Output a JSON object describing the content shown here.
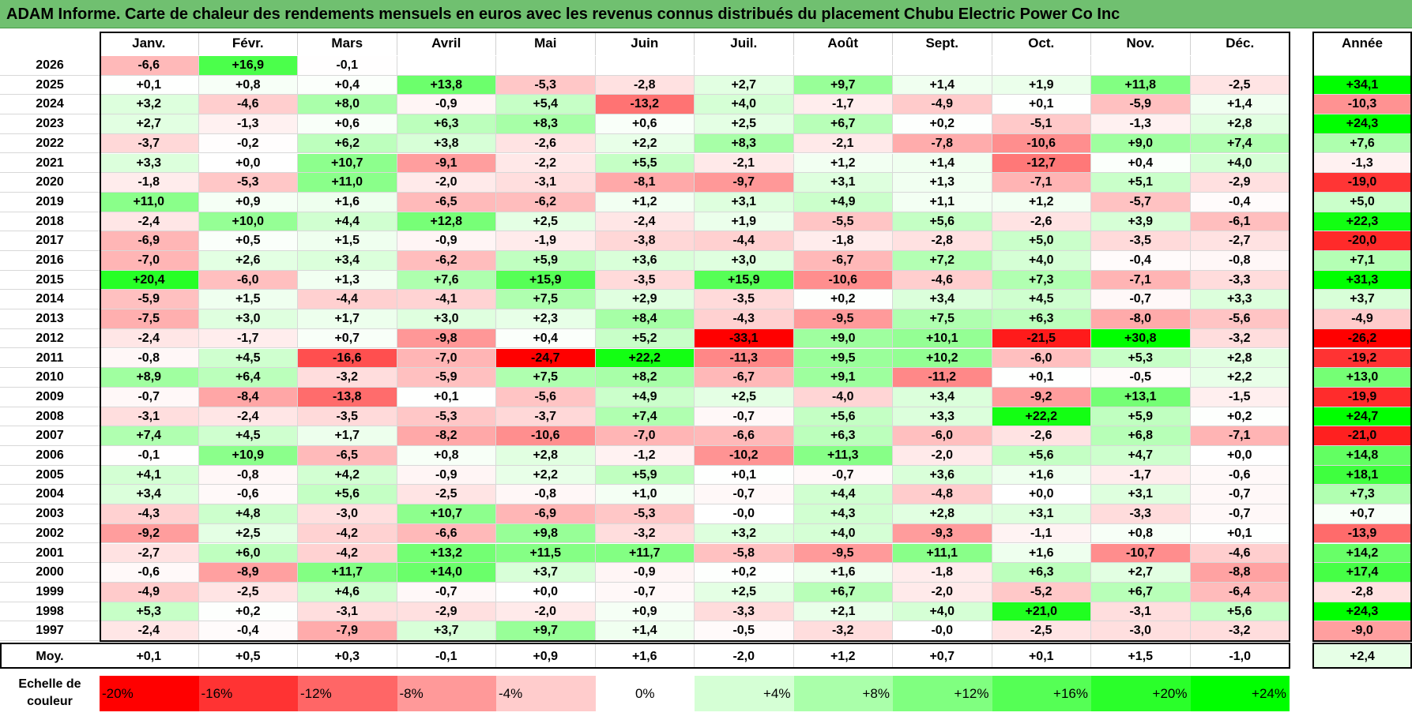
{
  "title": "ADAM Informe. Carte de chaleur des rendements mensuels en euros avec les revenus connus distribués du placement Chubu Electric Power Co Inc",
  "chart_data": {
    "type": "heatmap",
    "title": "ADAM Informe. Carte de chaleur des rendements mensuels en euros avec les revenus connus distribués du placement Chubu Electric Power Co Inc",
    "columns": [
      "Janv.",
      "Févr.",
      "Mars",
      "Avril",
      "Mai",
      "Juin",
      "Juil.",
      "Août",
      "Sept.",
      "Oct.",
      "Nov.",
      "Déc."
    ],
    "annual_header": "Année",
    "rows": [
      {
        "year": "2026",
        "values": [
          "-6,6",
          "+16,9",
          "-0,1",
          "",
          "",
          "",
          "",
          "",
          "",
          "",
          "",
          ""
        ],
        "annual": ""
      },
      {
        "year": "2025",
        "values": [
          "+0,1",
          "+0,8",
          "+0,4",
          "+13,8",
          "-5,3",
          "-2,8",
          "+2,7",
          "+9,7",
          "+1,4",
          "+1,9",
          "+11,8",
          "-2,5"
        ],
        "annual": "+34,1"
      },
      {
        "year": "2024",
        "values": [
          "+3,2",
          "-4,6",
          "+8,0",
          "-0,9",
          "+5,4",
          "-13,2",
          "+4,0",
          "-1,7",
          "-4,9",
          "+0,1",
          "-5,9",
          "+1,4"
        ],
        "annual": "-10,3"
      },
      {
        "year": "2023",
        "values": [
          "+2,7",
          "-1,3",
          "+0,6",
          "+6,3",
          "+8,3",
          "+0,6",
          "+2,5",
          "+6,7",
          "+0,2",
          "-5,1",
          "-1,3",
          "+2,8"
        ],
        "annual": "+24,3"
      },
      {
        "year": "2022",
        "values": [
          "-3,7",
          "-0,2",
          "+6,2",
          "+3,8",
          "-2,6",
          "+2,2",
          "+8,3",
          "-2,1",
          "-7,8",
          "-10,6",
          "+9,0",
          "+7,4"
        ],
        "annual": "+7,6"
      },
      {
        "year": "2021",
        "values": [
          "+3,3",
          "+0,0",
          "+10,7",
          "-9,1",
          "-2,2",
          "+5,5",
          "-2,1",
          "+1,2",
          "+1,4",
          "-12,7",
          "+0,4",
          "+4,0"
        ],
        "annual": "-1,3"
      },
      {
        "year": "2020",
        "values": [
          "-1,8",
          "-5,3",
          "+11,0",
          "-2,0",
          "-3,1",
          "-8,1",
          "-9,7",
          "+3,1",
          "+1,3",
          "-7,1",
          "+5,1",
          "-2,9"
        ],
        "annual": "-19,0"
      },
      {
        "year": "2019",
        "values": [
          "+11,0",
          "+0,9",
          "+1,6",
          "-6,5",
          "-6,2",
          "+1,2",
          "+3,1",
          "+4,9",
          "+1,1",
          "+1,2",
          "-5,7",
          "-0,4"
        ],
        "annual": "+5,0"
      },
      {
        "year": "2018",
        "values": [
          "-2,4",
          "+10,0",
          "+4,4",
          "+12,8",
          "+2,5",
          "-2,4",
          "+1,9",
          "-5,5",
          "+5,6",
          "-2,6",
          "+3,9",
          "-6,1"
        ],
        "annual": "+22,3"
      },
      {
        "year": "2017",
        "values": [
          "-6,9",
          "+0,5",
          "+1,5",
          "-0,9",
          "-1,9",
          "-3,8",
          "-4,4",
          "-1,8",
          "-2,8",
          "+5,0",
          "-3,5",
          "-2,7"
        ],
        "annual": "-20,0"
      },
      {
        "year": "2016",
        "values": [
          "-7,0",
          "+2,6",
          "+3,4",
          "-6,2",
          "+5,9",
          "+3,6",
          "+3,0",
          "-6,7",
          "+7,2",
          "+4,0",
          "-0,4",
          "-0,8"
        ],
        "annual": "+7,1"
      },
      {
        "year": "2015",
        "values": [
          "+20,4",
          "-6,0",
          "+1,3",
          "+7,6",
          "+15,9",
          "-3,5",
          "+15,9",
          "-10,6",
          "-4,6",
          "+7,3",
          "-7,1",
          "-3,3"
        ],
        "annual": "+31,3"
      },
      {
        "year": "2014",
        "values": [
          "-5,9",
          "+1,5",
          "-4,4",
          "-4,1",
          "+7,5",
          "+2,9",
          "-3,5",
          "+0,2",
          "+3,4",
          "+4,5",
          "-0,7",
          "+3,3"
        ],
        "annual": "+3,7"
      },
      {
        "year": "2013",
        "values": [
          "-7,5",
          "+3,0",
          "+1,7",
          "+3,0",
          "+2,3",
          "+8,4",
          "-4,3",
          "-9,5",
          "+7,5",
          "+6,3",
          "-8,0",
          "-5,6"
        ],
        "annual": "-4,9"
      },
      {
        "year": "2012",
        "values": [
          "-2,4",
          "-1,7",
          "+0,7",
          "-9,8",
          "+0,4",
          "+5,2",
          "-33,1",
          "+9,0",
          "+10,1",
          "-21,5",
          "+30,8",
          "-3,2"
        ],
        "annual": "-26,2"
      },
      {
        "year": "2011",
        "values": [
          "-0,8",
          "+4,5",
          "-16,6",
          "-7,0",
          "-24,7",
          "+22,2",
          "-11,3",
          "+9,5",
          "+10,2",
          "-6,0",
          "+5,3",
          "+2,8"
        ],
        "annual": "-19,2"
      },
      {
        "year": "2010",
        "values": [
          "+8,9",
          "+6,4",
          "-3,2",
          "-5,9",
          "+7,5",
          "+8,2",
          "-6,7",
          "+9,1",
          "-11,2",
          "+0,1",
          "-0,5",
          "+2,2"
        ],
        "annual": "+13,0"
      },
      {
        "year": "2009",
        "values": [
          "-0,7",
          "-8,4",
          "-13,8",
          "+0,1",
          "-5,6",
          "+4,9",
          "+2,5",
          "-4,0",
          "+3,4",
          "-9,2",
          "+13,1",
          "-1,5"
        ],
        "annual": "-19,9"
      },
      {
        "year": "2008",
        "values": [
          "-3,1",
          "-2,4",
          "-3,5",
          "-5,3",
          "-3,7",
          "+7,4",
          "-0,7",
          "+5,6",
          "+3,3",
          "+22,2",
          "+5,9",
          "+0,2"
        ],
        "annual": "+24,7"
      },
      {
        "year": "2007",
        "values": [
          "+7,4",
          "+4,5",
          "+1,7",
          "-8,2",
          "-10,6",
          "-7,0",
          "-6,6",
          "+6,3",
          "-6,0",
          "-2,6",
          "+6,8",
          "-7,1"
        ],
        "annual": "-21,0"
      },
      {
        "year": "2006",
        "values": [
          "-0,1",
          "+10,9",
          "-6,5",
          "+0,8",
          "+2,8",
          "-1,2",
          "-10,2",
          "+11,3",
          "-2,0",
          "+5,6",
          "+4,7",
          "+0,0"
        ],
        "annual": "+14,8"
      },
      {
        "year": "2005",
        "values": [
          "+4,1",
          "-0,8",
          "+4,2",
          "-0,9",
          "+2,2",
          "+5,9",
          "+0,1",
          "-0,7",
          "+3,6",
          "+1,6",
          "-1,7",
          "-0,6"
        ],
        "annual": "+18,1"
      },
      {
        "year": "2004",
        "values": [
          "+3,4",
          "-0,6",
          "+5,6",
          "-2,5",
          "-0,8",
          "+1,0",
          "-0,7",
          "+4,4",
          "-4,8",
          "+0,0",
          "+3,1",
          "-0,7"
        ],
        "annual": "+7,3"
      },
      {
        "year": "2003",
        "values": [
          "-4,3",
          "+4,8",
          "-3,0",
          "+10,7",
          "-6,9",
          "-5,3",
          "-0,0",
          "+4,3",
          "+2,8",
          "+3,1",
          "-3,3",
          "-0,7"
        ],
        "annual": "+0,7"
      },
      {
        "year": "2002",
        "values": [
          "-9,2",
          "+2,5",
          "-4,2",
          "-6,6",
          "+9,8",
          "-3,2",
          "+3,2",
          "+4,0",
          "-9,3",
          "-1,1",
          "+0,8",
          "+0,1"
        ],
        "annual": "-13,9"
      },
      {
        "year": "2001",
        "values": [
          "-2,7",
          "+6,0",
          "-4,2",
          "+13,2",
          "+11,5",
          "+11,7",
          "-5,8",
          "-9,5",
          "+11,1",
          "+1,6",
          "-10,7",
          "-4,6"
        ],
        "annual": "+14,2"
      },
      {
        "year": "2000",
        "values": [
          "-0,6",
          "-8,9",
          "+11,7",
          "+14,0",
          "+3,7",
          "-0,9",
          "+0,2",
          "+1,6",
          "-1,8",
          "+6,3",
          "+2,7",
          "-8,8"
        ],
        "annual": "+17,4"
      },
      {
        "year": "1999",
        "values": [
          "-4,9",
          "-2,5",
          "+4,6",
          "-0,7",
          "+0,0",
          "-0,7",
          "+2,5",
          "+6,7",
          "-2,0",
          "-5,2",
          "+6,7",
          "-6,4"
        ],
        "annual": "-2,8"
      },
      {
        "year": "1998",
        "values": [
          "+5,3",
          "+0,2",
          "-3,1",
          "-2,9",
          "-2,0",
          "+0,9",
          "-3,3",
          "+2,1",
          "+4,0",
          "+21,0",
          "-3,1",
          "+5,6"
        ],
        "annual": "+24,3"
      },
      {
        "year": "1997",
        "values": [
          "-2,4",
          "-0,4",
          "-7,9",
          "+3,7",
          "+9,7",
          "+1,4",
          "-0,5",
          "-3,2",
          "-0,0",
          "-2,5",
          "-3,0",
          "-3,2"
        ],
        "annual": "-9,0"
      }
    ],
    "average": {
      "label": "Moy.",
      "values": [
        "+0,1",
        "+0,5",
        "+0,3",
        "-0,1",
        "+0,9",
        "+1,6",
        "-2,0",
        "+1,2",
        "+0,7",
        "+0,1",
        "+1,5",
        "-1,0"
      ],
      "annual": "+2,4"
    },
    "scale": {
      "label_line1": "Echelle de",
      "label_line2": "couleur",
      "steps": [
        "-20%",
        "-16%",
        "-12%",
        "-8%",
        "-4%",
        "0%",
        "+4%",
        "+8%",
        "+12%",
        "+16%",
        "+20%",
        "+24%"
      ],
      "step_values": [
        -20,
        -16,
        -12,
        -8,
        -4,
        0,
        4,
        8,
        12,
        16,
        20,
        24
      ]
    }
  }
}
